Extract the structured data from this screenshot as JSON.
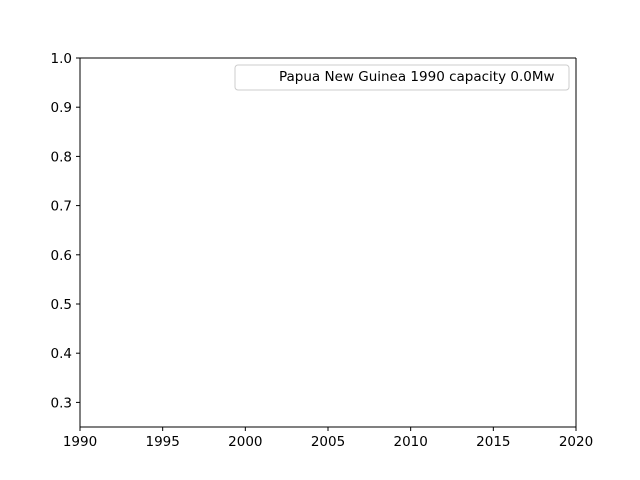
{
  "chart_data": {
    "type": "line",
    "title": "",
    "xlabel": "",
    "ylabel": "",
    "xlim": [
      1990,
      2020
    ],
    "ylim": [
      0.25,
      1.0
    ],
    "x_ticks": [
      1990,
      1995,
      2000,
      2005,
      2010,
      2015,
      2020
    ],
    "y_ticks": [
      0.3,
      0.4,
      0.5,
      0.6,
      0.7,
      0.8,
      0.9,
      1.0
    ],
    "grid": false,
    "legend_position": "top-right",
    "series": [
      {
        "name": "Papua New Guinea 1990 capacity 0.0Mw",
        "x": [],
        "y": []
      }
    ]
  }
}
